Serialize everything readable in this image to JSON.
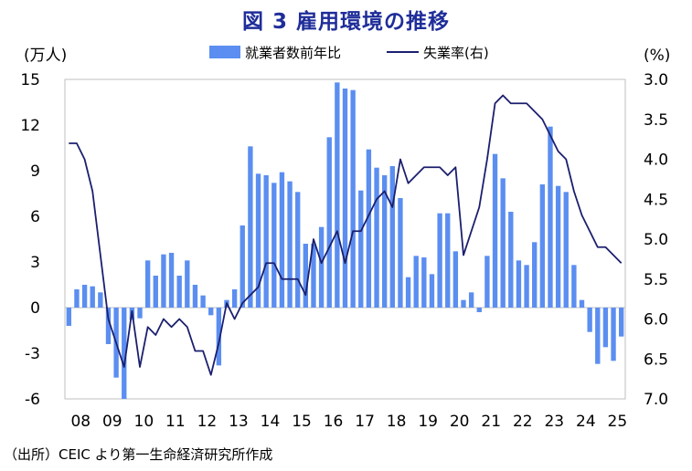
{
  "chart_data": {
    "type": "bar+line",
    "title": "図 3  雇用環境の推移",
    "left_axis": {
      "unit_label": "(万人)",
      "ylim": [
        -6,
        15
      ],
      "ticks": [
        15,
        12,
        9,
        6,
        3,
        0,
        -3,
        -6
      ]
    },
    "right_axis": {
      "unit_label": "(%)",
      "ylim": [
        3.0,
        7.0
      ],
      "inverted": true,
      "ticks": [
        "3.0",
        "3.5",
        "4.0",
        "4.5",
        "5.0",
        "5.5",
        "6.0",
        "6.5",
        "7.0"
      ]
    },
    "x_tick_labels": [
      "08",
      "09",
      "10",
      "11",
      "12",
      "13",
      "14",
      "15",
      "16",
      "17",
      "18",
      "19",
      "20",
      "21",
      "22",
      "23",
      "24",
      "25"
    ],
    "quarters_per_year": 4,
    "series": [
      {
        "name": "就業者数前年比",
        "type": "bar",
        "axis": "left",
        "color": "#5b8ef0",
        "values": [
          -1.2,
          1.2,
          1.5,
          1.4,
          1.0,
          -2.4,
          -4.6,
          -6.0,
          -0.8,
          -0.7,
          3.1,
          2.1,
          3.5,
          3.6,
          2.1,
          3.1,
          1.5,
          0.8,
          -0.5,
          -3.8,
          0.5,
          1.2,
          5.4,
          10.6,
          8.8,
          8.7,
          8.2,
          8.9,
          8.3,
          7.6,
          4.2,
          4.2,
          5.3,
          11.2,
          14.8,
          14.4,
          14.3,
          7.7,
          10.4,
          9.2,
          8.7,
          9.3,
          7.2,
          2.0,
          3.4,
          3.3,
          2.2,
          6.2,
          6.2,
          3.7,
          0.5,
          1.0,
          -0.3,
          3.4,
          10.1,
          8.5,
          6.3,
          3.1,
          2.8,
          4.3,
          8.1,
          11.9,
          8.0,
          7.6,
          2.8,
          0.5,
          -1.6,
          -3.7,
          -2.6,
          -3.5,
          -1.9
        ]
      },
      {
        "name": "失業率(右)",
        "type": "line",
        "axis": "right",
        "color": "#1b1f6e",
        "values": [
          3.8,
          3.8,
          4.0,
          4.4,
          5.2,
          6.0,
          6.3,
          6.6,
          5.9,
          6.6,
          6.1,
          6.2,
          6.0,
          6.1,
          6.0,
          6.1,
          6.4,
          6.4,
          6.7,
          6.3,
          5.8,
          6.0,
          5.8,
          5.7,
          5.6,
          5.3,
          5.3,
          5.5,
          5.5,
          5.5,
          5.7,
          5.0,
          5.3,
          5.1,
          4.9,
          5.3,
          4.9,
          4.9,
          4.7,
          4.5,
          4.4,
          4.6,
          4.0,
          4.3,
          4.2,
          4.1,
          4.1,
          4.1,
          4.2,
          4.1,
          5.2,
          4.9,
          4.6,
          4.0,
          3.3,
          3.2,
          3.3,
          3.3,
          3.3,
          3.4,
          3.5,
          3.7,
          3.9,
          4.0,
          4.4,
          4.7,
          4.9,
          5.1,
          5.1,
          5.2,
          5.3
        ]
      }
    ],
    "legend_position": "top-center"
  },
  "source_note": "（出所）CEIC より第一生命経済研究所作成"
}
